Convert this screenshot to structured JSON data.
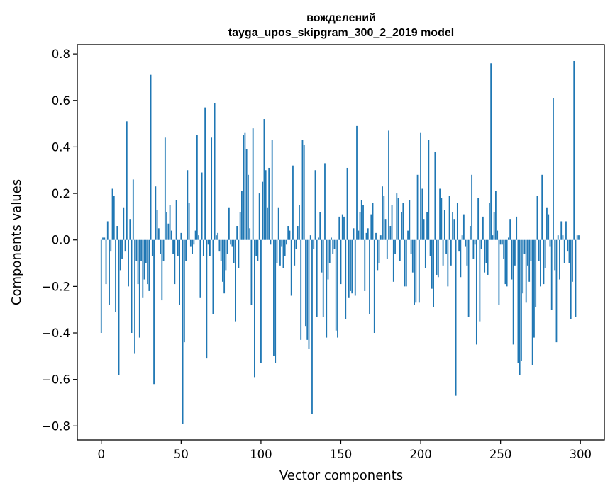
{
  "chart_data": {
    "type": "bar",
    "title_line1": "вожделений",
    "title_line2": "tayga_upos_skipgram_300_2_2019 model",
    "xlabel": "Vector components",
    "ylabel": "Components values",
    "xlim": [
      -15,
      315
    ],
    "ylim": [
      -0.86,
      0.84
    ],
    "xticks": [
      0,
      50,
      100,
      150,
      200,
      250,
      300
    ],
    "xtick_labels": [
      "0",
      "50",
      "100",
      "150",
      "200",
      "250",
      "300"
    ],
    "yticks": [
      -0.8,
      -0.6,
      -0.4,
      -0.2,
      0.0,
      0.2,
      0.4,
      0.6,
      0.8
    ],
    "ytick_labels": [
      "−0.8",
      "−0.6",
      "−0.4",
      "−0.2",
      "0.0",
      "0.2",
      "0.4",
      "0.6",
      "0.8"
    ],
    "bar_color": "#1f77b4",
    "grid": false,
    "values": [
      -0.4,
      0.01,
      0.01,
      -0.19,
      0.08,
      -0.28,
      -0.05,
      0.22,
      0.19,
      -0.31,
      0.06,
      -0.58,
      -0.13,
      -0.08,
      0.14,
      -0.05,
      0.51,
      -0.2,
      0.09,
      -0.4,
      0.26,
      -0.49,
      -0.09,
      -0.19,
      -0.42,
      -0.09,
      -0.25,
      -0.17,
      -0.1,
      -0.19,
      -0.22,
      0.71,
      -0.07,
      -0.62,
      0.23,
      0.13,
      0.05,
      -0.06,
      -0.26,
      -0.09,
      0.44,
      0.12,
      0.07,
      0.15,
      0.04,
      -0.06,
      -0.19,
      0.17,
      -0.07,
      -0.28,
      0.03,
      -0.79,
      -0.44,
      -0.09,
      0.3,
      0.16,
      -0.03,
      -0.06,
      -0.02,
      0.04,
      0.45,
      0.02,
      -0.25,
      0.29,
      -0.07,
      0.57,
      -0.51,
      -0.02,
      -0.07,
      0.44,
      -0.32,
      0.59,
      0.02,
      0.03,
      -0.05,
      -0.09,
      -0.18,
      -0.23,
      -0.13,
      -0.06,
      0.14,
      -0.02,
      -0.03,
      -0.1,
      -0.35,
      0.06,
      -0.12,
      0.12,
      0.21,
      0.45,
      0.46,
      0.39,
      0.28,
      0.05,
      -0.28,
      0.48,
      -0.59,
      -0.07,
      -0.09,
      0.2,
      -0.53,
      0.25,
      0.52,
      0.3,
      0.14,
      0.31,
      -0.02,
      0.43,
      -0.5,
      -0.53,
      -0.1,
      0.14,
      -0.11,
      -0.03,
      -0.12,
      -0.07,
      -0.02,
      0.06,
      0.04,
      -0.24,
      0.32,
      -0.11,
      -0.04,
      0.06,
      0.15,
      -0.43,
      0.43,
      0.41,
      -0.37,
      -0.43,
      -0.47,
      0.02,
      -0.75,
      -0.04,
      0.3,
      -0.33,
      0.01,
      0.12,
      -0.14,
      -0.33,
      0.33,
      -0.42,
      -0.17,
      -0.1,
      0.01,
      -0.06,
      -0.04,
      -0.39,
      -0.42,
      0.1,
      -0.19,
      0.11,
      0.1,
      -0.34,
      0.31,
      -0.25,
      -0.22,
      -0.23,
      0.05,
      -0.24,
      0.49,
      0.04,
      0.12,
      0.17,
      0.15,
      -0.22,
      0.03,
      0.05,
      -0.32,
      0.11,
      0.16,
      -0.4,
      0.03,
      -0.13,
      -0.1,
      0.02,
      0.23,
      0.19,
      0.09,
      -0.08,
      0.47,
      0.06,
      0.15,
      -0.18,
      -0.06,
      0.2,
      0.18,
      -0.09,
      0.12,
      0.16,
      -0.2,
      -0.2,
      0.04,
      0.17,
      -0.06,
      -0.14,
      -0.28,
      -0.27,
      0.28,
      -0.27,
      0.46,
      0.22,
      0.09,
      -0.12,
      0.12,
      0.43,
      -0.07,
      -0.21,
      -0.29,
      0.38,
      -0.15,
      -0.16,
      0.22,
      0.18,
      -0.11,
      0.13,
      -0.06,
      -0.2,
      0.19,
      -0.11,
      0.12,
      0.09,
      -0.67,
      0.16,
      -0.05,
      -0.16,
      0.02,
      0.11,
      -0.03,
      -0.11,
      -0.33,
      0.06,
      0.28,
      -0.08,
      -0.02,
      -0.45,
      0.18,
      -0.35,
      -0.04,
      0.1,
      -0.14,
      -0.1,
      -0.15,
      0.16,
      0.76,
      0.02,
      0.12,
      0.21,
      0.04,
      -0.28,
      -0.02,
      -0.02,
      -0.08,
      -0.19,
      -0.2,
      0.01,
      0.09,
      -0.17,
      -0.45,
      -0.11,
      0.1,
      -0.53,
      -0.58,
      -0.52,
      -0.23,
      -0.06,
      -0.27,
      -0.11,
      -0.18,
      -0.09,
      -0.54,
      -0.42,
      -0.29,
      0.19,
      -0.09,
      -0.2,
      0.28,
      -0.19,
      -0.12,
      0.14,
      0.11,
      -0.03,
      -0.3,
      0.61,
      -0.13,
      -0.44,
      0.02,
      -0.17,
      0.08,
      0.02,
      -0.1,
      0.08,
      -0.05,
      -0.1,
      -0.34,
      -0.18,
      0.77,
      -0.33,
      0.02,
      0.02
    ]
  }
}
